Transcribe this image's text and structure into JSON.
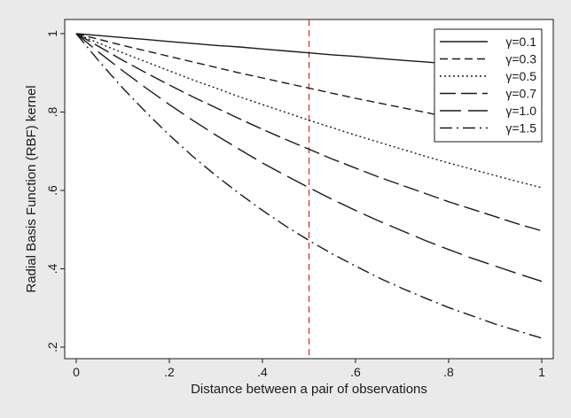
{
  "chart_data": {
    "type": "line",
    "title": "",
    "xlabel": "Distance between a pair of observations",
    "ylabel": "Radial Basis Function (RBF) kernel",
    "xlim": [
      0,
      1
    ],
    "ylim": [
      0.2,
      1.0
    ],
    "x_ticks": [
      0,
      0.2,
      0.4,
      0.6,
      0.8,
      1.0
    ],
    "x_tick_labels": [
      "0",
      ".2",
      ".4",
      ".6",
      ".8",
      "1"
    ],
    "y_ticks": [
      0.2,
      0.4,
      0.6,
      0.8,
      1.0
    ],
    "y_tick_labels": [
      ".2",
      ".4",
      ".6",
      ".8",
      "1"
    ],
    "grid": false,
    "legend_position": "top-right",
    "reference_line": {
      "axis": "x",
      "value": 0.5,
      "color": "#d9322b",
      "style": "dashed"
    },
    "x": [
      0,
      0.05,
      0.1,
      0.15,
      0.2,
      0.25,
      0.3,
      0.35,
      0.4,
      0.45,
      0.5,
      0.55,
      0.6,
      0.65,
      0.7,
      0.75,
      0.8,
      0.85,
      0.9,
      0.95,
      1.0
    ],
    "series": [
      {
        "name": "γ=0.1",
        "dash": "solid",
        "values": [
          1.0,
          0.995,
          0.99,
          0.985,
          0.98,
          0.975,
          0.97,
          0.966,
          0.961,
          0.956,
          0.951,
          0.946,
          0.942,
          0.937,
          0.932,
          0.928,
          0.923,
          0.919,
          0.914,
          0.909,
          0.905
        ]
      },
      {
        "name": "γ=0.3",
        "dash": "short-dash",
        "values": [
          1.0,
          0.985,
          0.97,
          0.956,
          0.942,
          0.928,
          0.914,
          0.9,
          0.887,
          0.874,
          0.861,
          0.848,
          0.835,
          0.823,
          0.811,
          0.799,
          0.787,
          0.775,
          0.763,
          0.752,
          0.741
        ]
      },
      {
        "name": "γ=0.5",
        "dash": "dot",
        "values": [
          1.0,
          0.975,
          0.951,
          0.928,
          0.905,
          0.882,
          0.861,
          0.839,
          0.819,
          0.799,
          0.779,
          0.76,
          0.741,
          0.723,
          0.705,
          0.687,
          0.67,
          0.654,
          0.638,
          0.622,
          0.607
        ]
      },
      {
        "name": "γ=0.7",
        "dash": "long-dash",
        "values": [
          1.0,
          0.966,
          0.932,
          0.9,
          0.869,
          0.839,
          0.811,
          0.783,
          0.756,
          0.73,
          0.705,
          0.68,
          0.657,
          0.634,
          0.613,
          0.592,
          0.571,
          0.552,
          0.533,
          0.514,
          0.497
        ]
      },
      {
        "name": "γ=1.0",
        "dash": "long-dash-wide",
        "values": [
          1.0,
          0.951,
          0.905,
          0.861,
          0.819,
          0.779,
          0.741,
          0.705,
          0.67,
          0.638,
          0.607,
          0.577,
          0.549,
          0.522,
          0.497,
          0.472,
          0.449,
          0.427,
          0.407,
          0.387,
          0.368
        ]
      },
      {
        "name": "γ=1.5",
        "dash": "dash-dot",
        "values": [
          1.0,
          0.928,
          0.861,
          0.799,
          0.741,
          0.687,
          0.638,
          0.592,
          0.549,
          0.509,
          0.472,
          0.438,
          0.407,
          0.377,
          0.35,
          0.325,
          0.301,
          0.28,
          0.259,
          0.241,
          0.223
        ]
      }
    ],
    "colors": {
      "outer_background": "#eaeaea",
      "plot_background": "#ffffff",
      "series": "#1a1a1a"
    }
  }
}
